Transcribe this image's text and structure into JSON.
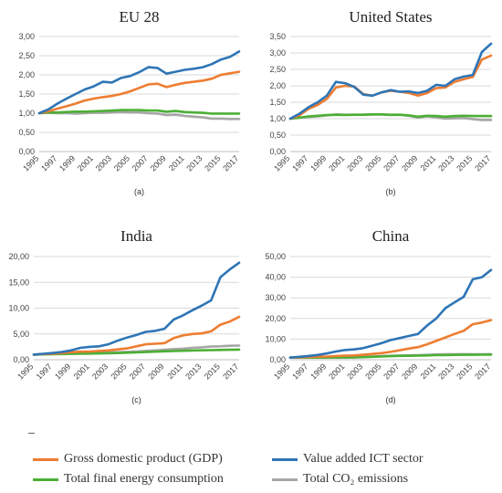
{
  "chart_data": [
    {
      "type": "line",
      "title": "EU 28",
      "sublabel": "(a)",
      "x": [
        1995,
        1996,
        1997,
        1998,
        1999,
        2000,
        2001,
        2002,
        2003,
        2004,
        2005,
        2006,
        2007,
        2008,
        2009,
        2010,
        2011,
        2012,
        2013,
        2014,
        2015,
        2016,
        2017
      ],
      "xticks": [
        "1995",
        "1997",
        "1999",
        "2001",
        "2003",
        "2005",
        "2007",
        "2009",
        "2011",
        "2013",
        "2015",
        "2017"
      ],
      "yticks": [
        "0,00",
        "0,50",
        "1,00",
        "1,50",
        "2,00",
        "2,50",
        "3,00"
      ],
      "ylim": [
        0,
        3
      ],
      "series": [
        {
          "key": "gdp",
          "values": [
            1.0,
            1.05,
            1.12,
            1.18,
            1.25,
            1.33,
            1.38,
            1.42,
            1.45,
            1.5,
            1.57,
            1.66,
            1.75,
            1.77,
            1.68,
            1.74,
            1.79,
            1.82,
            1.85,
            1.9,
            2.0,
            2.04,
            2.08
          ]
        },
        {
          "key": "ict",
          "values": [
            1.0,
            1.1,
            1.25,
            1.38,
            1.5,
            1.62,
            1.7,
            1.82,
            1.8,
            1.92,
            1.97,
            2.07,
            2.2,
            2.18,
            2.03,
            2.08,
            2.13,
            2.16,
            2.2,
            2.28,
            2.4,
            2.47,
            2.61
          ]
        },
        {
          "key": "energy",
          "values": [
            1.0,
            1.02,
            1.02,
            1.03,
            1.04,
            1.04,
            1.05,
            1.06,
            1.07,
            1.08,
            1.08,
            1.08,
            1.07,
            1.07,
            1.04,
            1.06,
            1.03,
            1.02,
            1.01,
            0.99,
            0.99,
            0.99,
            0.99
          ]
        },
        {
          "key": "co2",
          "values": [
            1.0,
            1.01,
            1.0,
            1.0,
            0.99,
            1.0,
            1.01,
            1.01,
            1.02,
            1.03,
            1.02,
            1.02,
            1.0,
            0.99,
            0.95,
            0.96,
            0.93,
            0.91,
            0.89,
            0.86,
            0.86,
            0.85,
            0.85
          ]
        }
      ]
    },
    {
      "type": "line",
      "title": "United States",
      "sublabel": "(b)",
      "x": [
        1995,
        1996,
        1997,
        1998,
        1999,
        2000,
        2001,
        2002,
        2003,
        2004,
        2005,
        2006,
        2007,
        2008,
        2009,
        2010,
        2011,
        2012,
        2013,
        2014,
        2015,
        2016,
        2017
      ],
      "xticks": [
        "1995",
        "1997",
        "1999",
        "2001",
        "2003",
        "2005",
        "2007",
        "2009",
        "2011",
        "2013",
        "2015",
        "2017"
      ],
      "yticks": [
        "0,00",
        "0,50",
        "1,00",
        "1,50",
        "2,00",
        "2,50",
        "3,00",
        "3,50"
      ],
      "ylim": [
        0,
        3.5
      ],
      "series": [
        {
          "key": "gdp",
          "values": [
            1.0,
            1.1,
            1.3,
            1.42,
            1.6,
            1.95,
            2.0,
            1.98,
            1.75,
            1.7,
            1.8,
            1.85,
            1.82,
            1.78,
            1.7,
            1.78,
            1.93,
            1.95,
            2.12,
            2.2,
            2.27,
            2.8,
            2.92
          ]
        },
        {
          "key": "ict",
          "values": [
            1.0,
            1.15,
            1.35,
            1.5,
            1.7,
            2.12,
            2.08,
            1.97,
            1.73,
            1.7,
            1.8,
            1.87,
            1.82,
            1.83,
            1.78,
            1.85,
            2.03,
            2.0,
            2.2,
            2.28,
            2.33,
            3.03,
            3.28
          ]
        },
        {
          "key": "energy",
          "values": [
            1.0,
            1.03,
            1.07,
            1.09,
            1.11,
            1.12,
            1.11,
            1.12,
            1.12,
            1.13,
            1.13,
            1.12,
            1.12,
            1.1,
            1.06,
            1.09,
            1.08,
            1.06,
            1.08,
            1.09,
            1.08,
            1.08,
            1.08
          ]
        },
        {
          "key": "co2",
          "values": [
            1.0,
            1.03,
            1.05,
            1.07,
            1.1,
            1.13,
            1.12,
            1.12,
            1.12,
            1.13,
            1.13,
            1.11,
            1.12,
            1.09,
            1.03,
            1.07,
            1.04,
            1.0,
            1.01,
            1.02,
            0.99,
            0.96,
            0.96
          ]
        }
      ]
    },
    {
      "type": "line",
      "title": "India",
      "sublabel": "(c)",
      "x": [
        1995,
        1996,
        1997,
        1998,
        1999,
        2000,
        2001,
        2002,
        2003,
        2004,
        2005,
        2006,
        2007,
        2008,
        2009,
        2010,
        2011,
        2012,
        2013,
        2014,
        2015,
        2016,
        2017
      ],
      "xticks": [
        "1995",
        "1997",
        "1999",
        "2001",
        "2003",
        "2005",
        "2007",
        "2009",
        "2011",
        "2013",
        "2015",
        "2017"
      ],
      "yticks": [
        "0,00",
        "5,00",
        "10,00",
        "15,00",
        "20,00"
      ],
      "ylim": [
        0,
        20
      ],
      "series": [
        {
          "key": "gdp",
          "values": [
            1.0,
            1.1,
            1.15,
            1.3,
            1.45,
            1.55,
            1.6,
            1.7,
            1.8,
            2.0,
            2.2,
            2.6,
            3.0,
            3.1,
            3.2,
            4.2,
            4.7,
            5.0,
            5.1,
            5.5,
            6.8,
            7.4,
            8.3
          ]
        },
        {
          "key": "ict",
          "values": [
            1.0,
            1.15,
            1.3,
            1.5,
            1.8,
            2.3,
            2.5,
            2.6,
            3.0,
            3.7,
            4.3,
            4.8,
            5.4,
            5.6,
            6.0,
            7.8,
            8.6,
            9.6,
            10.5,
            11.5,
            16.0,
            17.5,
            18.8
          ]
        },
        {
          "key": "energy",
          "values": [
            1.0,
            1.03,
            1.06,
            1.09,
            1.13,
            1.16,
            1.19,
            1.22,
            1.25,
            1.3,
            1.36,
            1.42,
            1.48,
            1.55,
            1.62,
            1.68,
            1.73,
            1.78,
            1.82,
            1.86,
            1.9,
            1.93,
            1.97
          ]
        },
        {
          "key": "co2",
          "values": [
            1.0,
            1.05,
            1.1,
            1.15,
            1.2,
            1.25,
            1.28,
            1.32,
            1.38,
            1.45,
            1.52,
            1.6,
            1.7,
            1.8,
            1.95,
            2.05,
            2.15,
            2.3,
            2.4,
            2.55,
            2.6,
            2.7,
            2.75
          ]
        }
      ]
    },
    {
      "type": "line",
      "title": "China",
      "sublabel": "(d)",
      "x": [
        1995,
        1996,
        1997,
        1998,
        1999,
        2000,
        2001,
        2002,
        2003,
        2004,
        2005,
        2006,
        2007,
        2008,
        2009,
        2010,
        2011,
        2012,
        2013,
        2014,
        2015,
        2016,
        2017
      ],
      "xticks": [
        "1995",
        "1997",
        "1999",
        "2001",
        "2003",
        "2005",
        "2007",
        "2009",
        "2011",
        "2013",
        "2015",
        "2017"
      ],
      "yticks": [
        "0,00",
        "10,00",
        "20,00",
        "30,00",
        "40,00",
        "50,00"
      ],
      "ylim": [
        0,
        50
      ],
      "series": [
        {
          "key": "gdp",
          "values": [
            1.0,
            1.15,
            1.3,
            1.45,
            1.55,
            1.75,
            1.95,
            2.1,
            2.4,
            2.8,
            3.2,
            3.8,
            4.6,
            5.4,
            6.1,
            7.5,
            9.1,
            10.8,
            12.5,
            14.0,
            17.2,
            18.0,
            19.2
          ]
        },
        {
          "key": "ict",
          "values": [
            1.0,
            1.4,
            1.8,
            2.3,
            3.0,
            4.0,
            4.7,
            5.0,
            5.6,
            6.8,
            8.0,
            9.5,
            10.5,
            11.5,
            12.5,
            16.6,
            20.0,
            25.0,
            27.8,
            30.5,
            39.0,
            40.0,
            43.5
          ]
        },
        {
          "key": "energy",
          "values": [
            1.0,
            1.02,
            1.02,
            1.0,
            1.01,
            1.04,
            1.08,
            1.14,
            1.26,
            1.43,
            1.6,
            1.72,
            1.84,
            1.92,
            2.0,
            2.1,
            2.2,
            2.27,
            2.34,
            2.37,
            2.4,
            2.42,
            2.47
          ]
        },
        {
          "key": "co2",
          "values": [
            1.0,
            1.03,
            1.03,
            1.0,
            1.01,
            1.04,
            1.09,
            1.17,
            1.35,
            1.55,
            1.75,
            1.92,
            2.05,
            2.12,
            2.22,
            2.35,
            2.55,
            2.6,
            2.66,
            2.68,
            2.66,
            2.63,
            2.68
          ]
        }
      ]
    }
  ],
  "legend": {
    "gdp": {
      "label": "Gross domestic product (GDP)",
      "color": "#ed7d31"
    },
    "ict": {
      "label": "Value added ICT sector",
      "color": "#2e75b6"
    },
    "energy": {
      "label": "Total final energy consumption",
      "color": "#4caf35"
    },
    "co2": {
      "label": "Total CO₂ emissions",
      "color": "#a6a6a6"
    }
  },
  "colors": {
    "gdp": "#ed7d31",
    "ict": "#2e75b6",
    "energy": "#4caf35",
    "co2": "#a6a6a6",
    "grid": "#d9d9d9",
    "axis": "#bfbfbf"
  }
}
